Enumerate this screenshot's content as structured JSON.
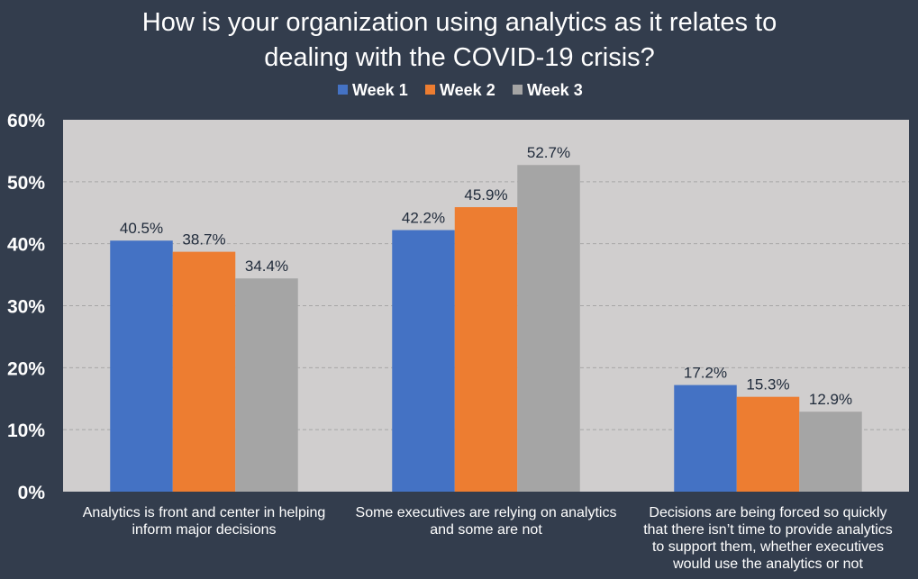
{
  "chart_data": {
    "type": "bar",
    "title_lines": [
      "How is your organization using analytics as it relates to",
      "dealing with the COVID-19 crisis?"
    ],
    "categories": [
      [
        "Analytics is front and center in helping",
        "inform major decisions"
      ],
      [
        "Some executives are relying on analytics",
        "and some are not"
      ],
      [
        "Decisions are being forced so quickly",
        "that there isn’t time to provide analytics",
        "to support them, whether executives",
        "would use the analytics or not"
      ]
    ],
    "series": [
      {
        "name": "Week 1",
        "color": "#4472c4",
        "values": [
          40.5,
          42.2,
          17.2
        ],
        "labels": [
          "40.5%",
          "42.2%",
          "17.2%"
        ]
      },
      {
        "name": "Week 2",
        "color": "#ed7d31",
        "values": [
          38.7,
          45.9,
          15.3
        ],
        "labels": [
          "38.7%",
          "45.9%",
          "15.3%"
        ]
      },
      {
        "name": "Week 3",
        "color": "#a5a5a5",
        "values": [
          34.4,
          52.7,
          12.9
        ],
        "labels": [
          "34.4%",
          "52.7%",
          "12.9%"
        ]
      }
    ],
    "ylim": [
      0,
      60
    ],
    "yticks": [
      0,
      10,
      20,
      30,
      40,
      50,
      60
    ],
    "ytick_labels": [
      "0%",
      "10%",
      "20%",
      "30%",
      "40%",
      "50%",
      "60%"
    ],
    "grid": true,
    "legend_position": "top-center",
    "colors": {
      "background": "#333d4d",
      "plot_area": "#d0cece",
      "gridline": "#a6a6a6",
      "title_text": "#ffffff",
      "data_label_text": "#1f2a3a"
    }
  }
}
